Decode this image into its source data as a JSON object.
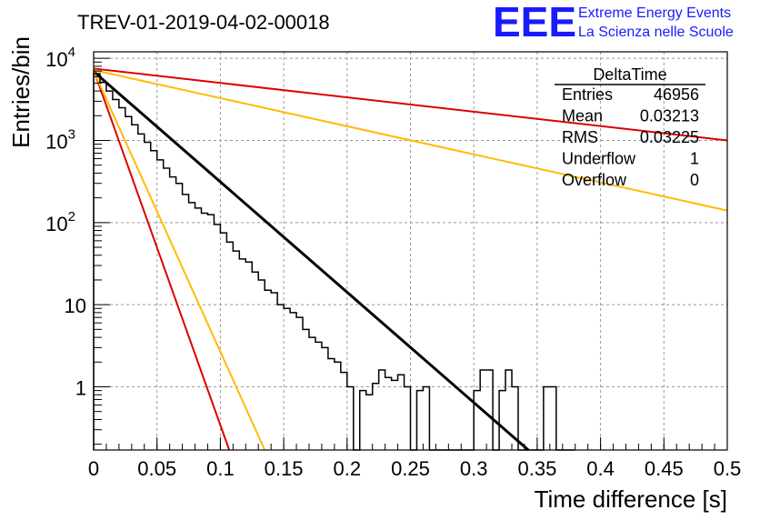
{
  "chart_data": {
    "type": "histogram",
    "title": "TREV-01-2019-04-02-00018",
    "xlabel": "Time difference [s]",
    "ylabel": "Entries/bin",
    "x_scale": "linear",
    "y_scale": "log",
    "xlim": [
      0,
      0.5
    ],
    "ylim": [
      0.17,
      12000
    ],
    "grid": true,
    "x_ticks": [
      {
        "value": 0,
        "label": "0"
      },
      {
        "value": 0.05,
        "label": "0.05"
      },
      {
        "value": 0.1,
        "label": "0.1"
      },
      {
        "value": 0.15,
        "label": "0.15"
      },
      {
        "value": 0.2,
        "label": "0.2"
      },
      {
        "value": 0.25,
        "label": "0.25"
      },
      {
        "value": 0.3,
        "label": "0.3"
      },
      {
        "value": 0.35,
        "label": "0.35"
      },
      {
        "value": 0.4,
        "label": "0.4"
      },
      {
        "value": 0.45,
        "label": "0.45"
      },
      {
        "value": 0.5,
        "label": "0.5"
      }
    ],
    "y_ticks": [
      {
        "value": 1,
        "label": "1"
      },
      {
        "value": 10,
        "label": "10"
      },
      {
        "value": 100,
        "label": "10",
        "exp": "2"
      },
      {
        "value": 1000,
        "label": "10",
        "exp": "3"
      },
      {
        "value": 10000,
        "label": "10",
        "exp": "4"
      }
    ],
    "histogram": {
      "name": "DeltaTime",
      "bin_width": 0.005,
      "values": [
        6500,
        5100,
        4000,
        3150,
        2500,
        1950,
        1550,
        1200,
        950,
        750,
        580,
        460,
        360,
        300,
        220,
        175,
        150,
        130,
        125,
        95,
        75,
        58,
        45,
        36,
        33,
        25,
        20,
        15,
        14,
        10,
        9,
        8,
        7,
        5,
        4,
        3.5,
        3,
        2.2,
        2,
        1.5,
        1,
        0.1,
        0.9,
        0.8,
        1.1,
        1.6,
        1.3,
        1.2,
        1.4,
        1.0,
        0.1,
        0.9,
        1.0,
        0.1,
        0.1,
        0.1,
        0,
        0,
        0,
        0,
        0.9,
        1.6,
        1.6,
        0.1,
        0.9,
        1.6,
        1.0,
        0,
        0,
        0,
        0,
        1.0,
        1.0,
        0,
        0,
        0
      ]
    },
    "fit_lines": [
      {
        "color": "#000000",
        "x": [
          0,
          0.343
        ],
        "y": [
          6900,
          0.17
        ]
      },
      {
        "color": "#dd0000",
        "x": [
          0,
          0.5
        ],
        "y": [
          7500,
          1000
        ]
      },
      {
        "color": "#ffbb00",
        "x": [
          0,
          0.5
        ],
        "y": [
          7200,
          140
        ]
      },
      {
        "color": "#dd0000",
        "x": [
          0,
          0.107
        ],
        "y": [
          7200,
          0.17
        ]
      },
      {
        "color": "#ffbb00",
        "x": [
          0,
          0.135
        ],
        "y": [
          7000,
          0.17
        ]
      }
    ],
    "stats_box": {
      "title": "DeltaTime",
      "rows": [
        {
          "label": "Entries",
          "value": "46956"
        },
        {
          "label": "Mean",
          "value": "0.03213"
        },
        {
          "label": "RMS",
          "value": "0.03225"
        },
        {
          "label": "Underflow",
          "value": "1"
        },
        {
          "label": "Overflow",
          "value": "0"
        }
      ]
    }
  },
  "logo": {
    "big": "EEE",
    "line1": "Extreme Energy Events",
    "line2": "La Scienza nelle Scuole"
  }
}
